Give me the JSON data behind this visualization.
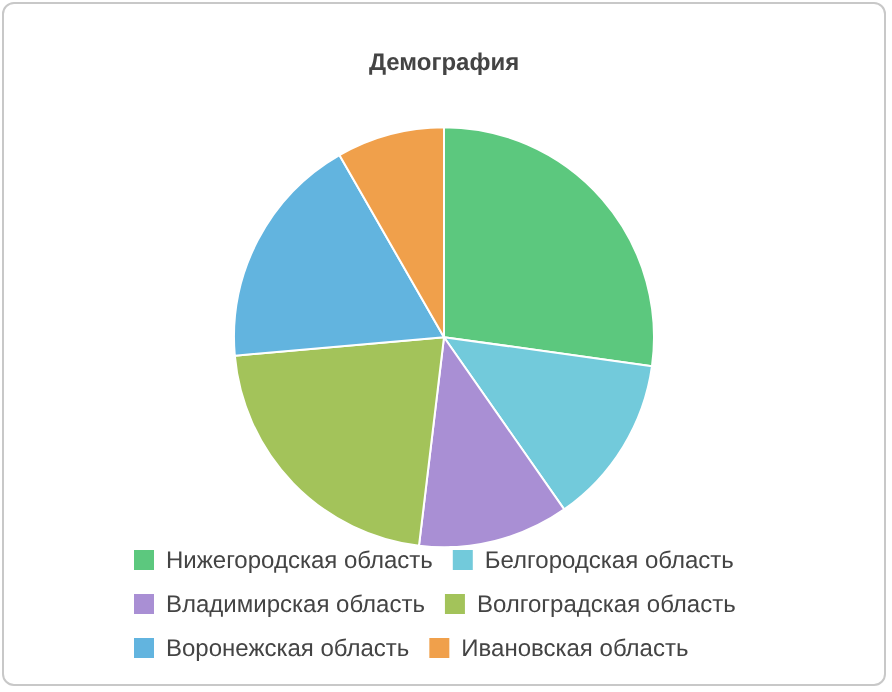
{
  "chart_data": {
    "type": "pie",
    "title": "Демография",
    "categories": [
      "Нижегородская область",
      "Белгородская область",
      "Владимирская область",
      "Волгоградская область",
      "Воронежская область",
      "Ивановская область"
    ],
    "values": [
      27.2,
      13.1,
      11.6,
      21.7,
      18.1,
      8.3
    ],
    "colors": [
      "#5cc87e",
      "#72cadb",
      "#a98fd4",
      "#a3c35a",
      "#62b4df",
      "#f0a04b"
    ],
    "legend": "bottom"
  }
}
